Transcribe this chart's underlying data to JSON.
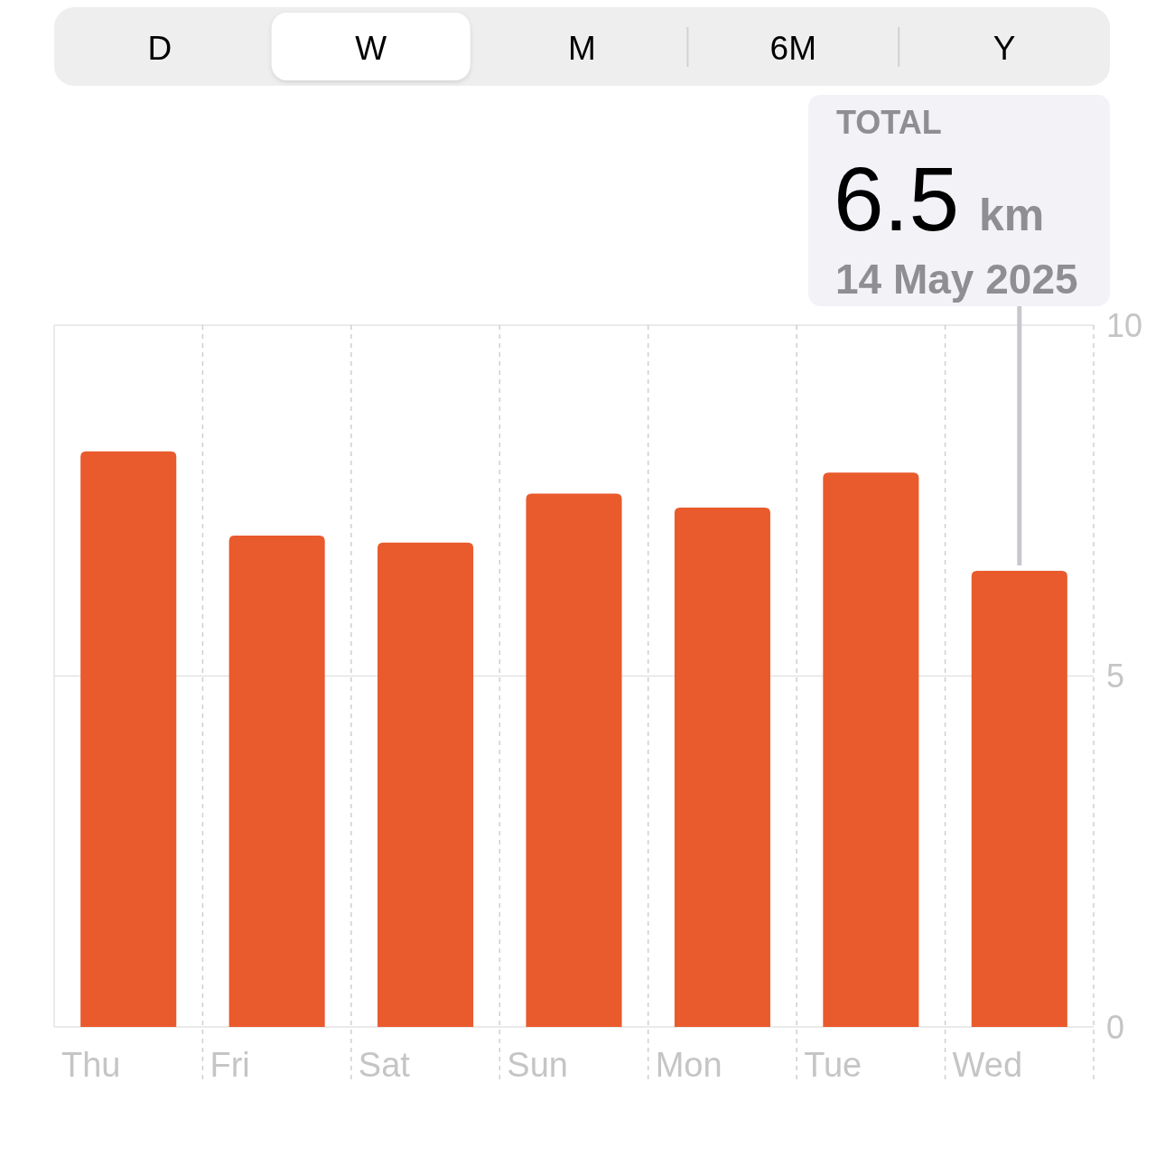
{
  "chart_data": {
    "type": "bar",
    "categories": [
      "Thu",
      "Fri",
      "Sat",
      "Sun",
      "Mon",
      "Tue",
      "Wed"
    ],
    "values": [
      8.2,
      7.0,
      6.9,
      7.6,
      7.4,
      7.9,
      6.5
    ],
    "color": "#e95a2c",
    "ylim": [
      0,
      10
    ],
    "yticks": [
      0,
      5,
      10
    ],
    "grid": true,
    "annotations": [
      "D",
      "W",
      "M",
      "6M",
      "Y",
      {
        "text": "TOTAL\n6.5 km\n14 May 2025",
        "x": "Wed",
        "y": 6.5
      }
    ]
  }
}
